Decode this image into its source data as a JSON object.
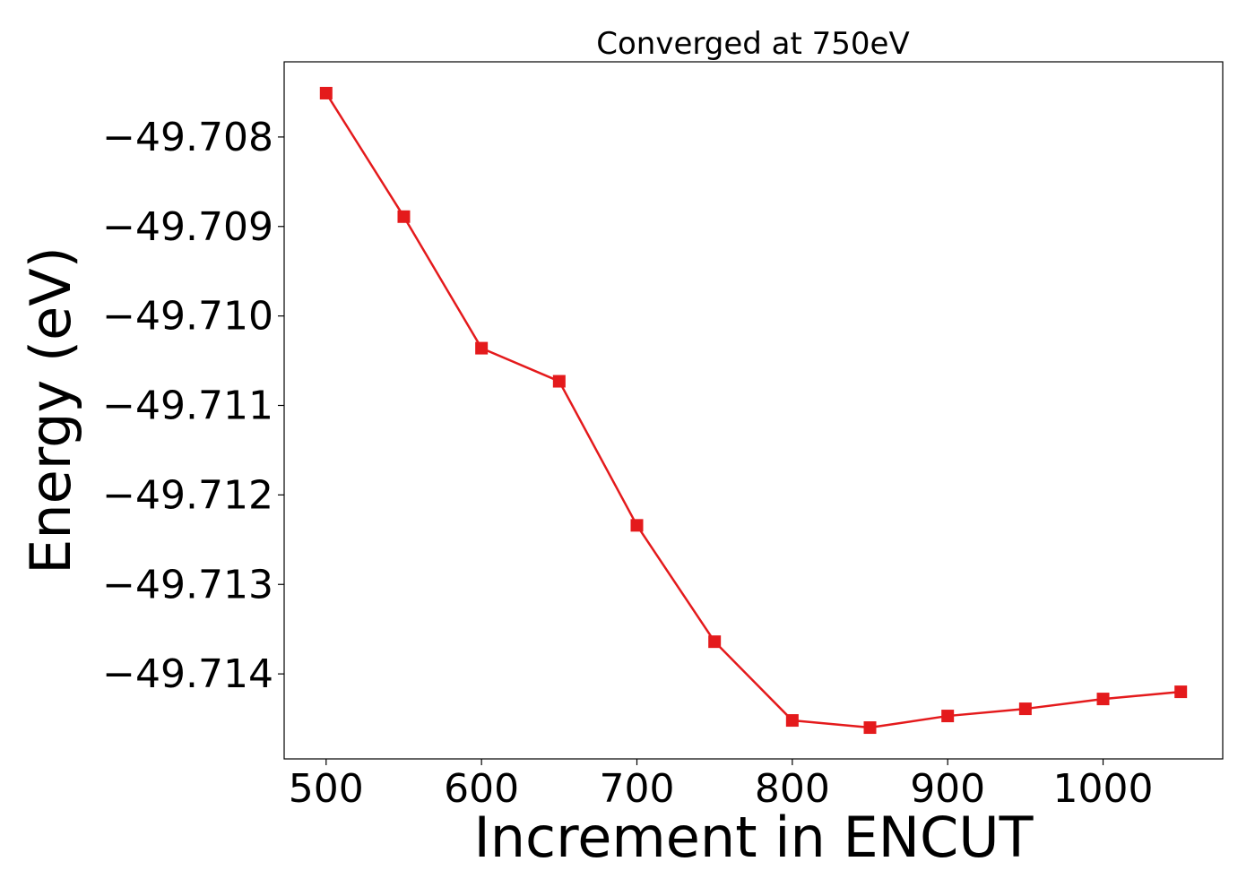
{
  "chart_data": {
    "type": "line",
    "title": "Converged at 750eV",
    "xlabel": "Increment in ENCUT",
    "ylabel": "Energy (eV)",
    "xlim": [
      473,
      1077
    ],
    "ylim": [
      -49.71495,
      -49.70716
    ],
    "xticks": [
      500,
      600,
      700,
      800,
      900,
      1000
    ],
    "xtick_labels": [
      "500",
      "600",
      "700",
      "800",
      "900",
      "1000"
    ],
    "yticks": [
      -49.708,
      -49.709,
      -49.71,
      -49.711,
      -49.712,
      -49.713,
      -49.714
    ],
    "ytick_labels": [
      "−49.708",
      "−49.709",
      "−49.710",
      "−49.711",
      "−49.712",
      "−49.713",
      "−49.714"
    ],
    "grid": false,
    "legend": false,
    "series": [
      {
        "color": "#e41a1c",
        "marker": "square",
        "x": [
          500,
          550,
          600,
          650,
          700,
          750,
          800,
          850,
          900,
          950,
          1000,
          1050
        ],
        "y": [
          -49.70751,
          -49.70889,
          -49.71036,
          -49.71073,
          -49.71234,
          -49.71364,
          -49.71452,
          -49.7146,
          -49.71447,
          -49.71439,
          -49.71428,
          -49.7142
        ]
      }
    ]
  }
}
